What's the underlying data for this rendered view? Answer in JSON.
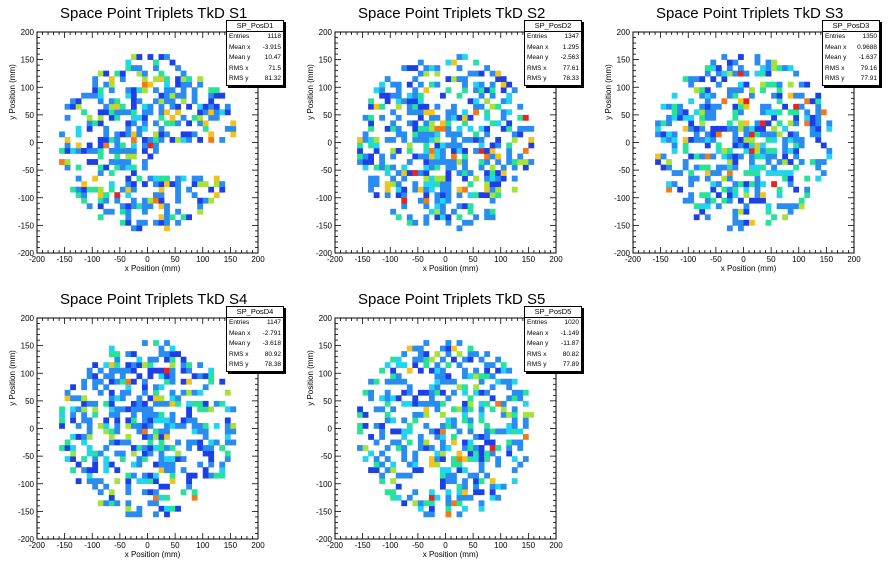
{
  "colors": {
    "palette": [
      "#1d3fe8",
      "#2a8bf0",
      "#22d4f0",
      "#27e39a",
      "#a6e23a",
      "#f2c21e",
      "#f07a1a",
      "#e8241e"
    ],
    "frame": "#000000",
    "background": "#ffffff"
  },
  "chart_data": [
    {
      "type": "heatmap",
      "title": "Space Point Triplets TkD S1",
      "xlabel": "x Position (mm)",
      "ylabel": "y Position (mm)",
      "xlim": [
        -200,
        200
      ],
      "ylim": [
        -200,
        200
      ],
      "xticks": [
        "-200",
        "-150",
        "-100",
        "-50",
        "0",
        "50",
        "100",
        "150",
        "200"
      ],
      "yticks": [
        "-200",
        "-150",
        "-100",
        "-50",
        "0",
        "50",
        "100",
        "150",
        "200"
      ],
      "bins": 40,
      "footprint": {
        "radius": 160,
        "notch": true
      },
      "stats": {
        "name": "SP_PosD1",
        "entries": "1118",
        "mean_x": "-3.915",
        "mean_y": "10.47",
        "rms_x": "71.5",
        "rms_y": "81.32"
      }
    },
    {
      "type": "heatmap",
      "title": "Space Point Triplets TkD S2",
      "xlabel": "x Position (mm)",
      "ylabel": "y Position (mm)",
      "xlim": [
        -200,
        200
      ],
      "ylim": [
        -200,
        200
      ],
      "xticks": [
        "-200",
        "-150",
        "-100",
        "-50",
        "0",
        "50",
        "100",
        "150",
        "200"
      ],
      "yticks": [
        "-200",
        "-150",
        "-100",
        "-50",
        "0",
        "50",
        "100",
        "150",
        "200"
      ],
      "bins": 40,
      "footprint": {
        "radius": 160,
        "notch": false
      },
      "stats": {
        "name": "SP_PosD2",
        "entries": "1347",
        "mean_x": "1.295",
        "mean_y": "-2.563",
        "rms_x": "77.61",
        "rms_y": "78.33"
      }
    },
    {
      "type": "heatmap",
      "title": "Space Point Triplets TkD S3",
      "xlabel": "x Position (mm)",
      "ylabel": "y Position (mm)",
      "xlim": [
        -200,
        200
      ],
      "ylim": [
        -200,
        200
      ],
      "xticks": [
        "-200",
        "-150",
        "-100",
        "-50",
        "0",
        "50",
        "100",
        "150",
        "200"
      ],
      "yticks": [
        "-200",
        "-150",
        "-100",
        "-50",
        "0",
        "50",
        "100",
        "150",
        "200"
      ],
      "bins": 40,
      "footprint": {
        "radius": 160,
        "notch": false
      },
      "stats": {
        "name": "SP_PosD3",
        "entries": "1350",
        "mean_x": "0.9688",
        "mean_y": "-1.637",
        "rms_x": "79.16",
        "rms_y": "77.91"
      }
    },
    {
      "type": "heatmap",
      "title": "Space Point Triplets TkD S4",
      "xlabel": "x Position (mm)",
      "ylabel": "y Position (mm)",
      "xlim": [
        -200,
        200
      ],
      "ylim": [
        -200,
        200
      ],
      "xticks": [
        "-200",
        "-150",
        "-100",
        "-50",
        "0",
        "50",
        "100",
        "150",
        "200"
      ],
      "yticks": [
        "-200",
        "-150",
        "-100",
        "-50",
        "0",
        "50",
        "100",
        "150",
        "200"
      ],
      "bins": 40,
      "footprint": {
        "radius": 160,
        "notch": false
      },
      "stats": {
        "name": "SP_PosD4",
        "entries": "1147",
        "mean_x": "-2.791",
        "mean_y": "-3.618",
        "rms_x": "80.92",
        "rms_y": "78.38"
      }
    },
    {
      "type": "heatmap",
      "title": "Space Point Triplets TkD S5",
      "xlabel": "x Position (mm)",
      "ylabel": "y Position (mm)",
      "xlim": [
        -200,
        200
      ],
      "ylim": [
        -200,
        200
      ],
      "xticks": [
        "-200",
        "-150",
        "-100",
        "-50",
        "0",
        "50",
        "100",
        "150",
        "200"
      ],
      "yticks": [
        "-200",
        "-150",
        "-100",
        "-50",
        "0",
        "50",
        "100",
        "150",
        "200"
      ],
      "bins": 40,
      "footprint": {
        "radius": 160,
        "notch": false
      },
      "stats": {
        "name": "SP_PosD5",
        "entries": "1020",
        "mean_x": "-1.149",
        "mean_y": "-11.87",
        "rms_x": "80.82",
        "rms_y": "77.89"
      }
    }
  ]
}
